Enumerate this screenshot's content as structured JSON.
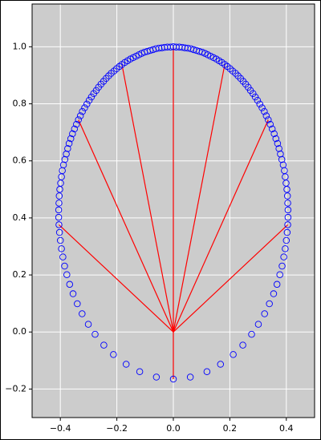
{
  "chart_data": {
    "type": "scatter",
    "xlim": [
      -0.5,
      0.5
    ],
    "ylim": [
      -0.3,
      1.15
    ],
    "xticks": [
      {
        "value": -0.4,
        "label": "−0.4"
      },
      {
        "value": -0.2,
        "label": "−0.2"
      },
      {
        "value": 0,
        "label": "0.0"
      },
      0.2,
      0.4
    ],
    "yticks": [
      {
        "value": -0.2,
        "label": "−0.2"
      },
      {
        "value": 0,
        "label": "0.0"
      },
      0.2,
      0.4,
      0.6,
      0.8,
      {
        "value": 1,
        "label": "1.0"
      }
    ],
    "grid": true,
    "background": "#cccccc",
    "series": [
      {
        "color": "#0000ff",
        "marker": "open-circle",
        "x": [
          0,
          0.06,
          0.119,
          0.167,
          0.212,
          0.246,
          0.277,
          0.301,
          0.323,
          0.34,
          0.355,
          0.367,
          0.377,
          0.385,
          0.391,
          0.396,
          0.4,
          0.403,
          0.405,
          0.406,
          0.406,
          0.405,
          0.404,
          0.402,
          0.399,
          0.396,
          0.393,
          0.389,
          0.384,
          0.379,
          0.374,
          0.369,
          0.363,
          0.357,
          0.35,
          0.343,
          0.336,
          0.329,
          0.322,
          0.314,
          0.306,
          0.298,
          0.29,
          0.282,
          0.273,
          0.265,
          0.256,
          0.247,
          0.238,
          0.229,
          0.22,
          0.21,
          0.201,
          0.191,
          0.182,
          0.172,
          0.162,
          0.152,
          0.142,
          0.132,
          0.122,
          0.112,
          0.102,
          0.092,
          0.082,
          0.072,
          0.062,
          0.051,
          0.041,
          0.031,
          0.021,
          0.01,
          0,
          -0.01,
          -0.021,
          -0.031,
          -0.041,
          -0.051,
          -0.062,
          -0.072,
          -0.082,
          -0.092,
          -0.102,
          -0.112,
          -0.122,
          -0.132,
          -0.142,
          -0.152,
          -0.162,
          -0.172,
          -0.182,
          -0.191,
          -0.201,
          -0.21,
          -0.22,
          -0.229,
          -0.238,
          -0.247,
          -0.256,
          -0.265,
          -0.273,
          -0.282,
          -0.29,
          -0.298,
          -0.306,
          -0.314,
          -0.322,
          -0.329,
          -0.336,
          -0.343,
          -0.35,
          -0.357,
          -0.363,
          -0.369,
          -0.374,
          -0.379,
          -0.384,
          -0.389,
          -0.393,
          -0.396,
          -0.399,
          -0.402,
          -0.404,
          -0.405,
          -0.406,
          -0.406,
          -0.405,
          -0.403,
          -0.4,
          -0.396,
          -0.391,
          -0.385,
          -0.377,
          -0.367,
          -0.355,
          -0.34,
          -0.323,
          -0.301,
          -0.277,
          -0.246,
          -0.212,
          -0.167,
          -0.119,
          -0.06
        ],
        "y": [
          -0.165,
          -0.158,
          -0.139,
          -0.113,
          -0.079,
          -0.046,
          -0.008,
          0.027,
          0.064,
          0.099,
          0.134,
          0.167,
          0.201,
          0.231,
          0.263,
          0.292,
          0.321,
          0.349,
          0.376,
          0.402,
          0.428,
          0.452,
          0.477,
          0.5,
          0.522,
          0.544,
          0.566,
          0.586,
          0.605,
          0.624,
          0.643,
          0.661,
          0.678,
          0.695,
          0.712,
          0.728,
          0.744,
          0.758,
          0.773,
          0.786,
          0.799,
          0.812,
          0.824,
          0.836,
          0.847,
          0.858,
          0.869,
          0.879,
          0.889,
          0.898,
          0.907,
          0.915,
          0.923,
          0.931,
          0.938,
          0.945,
          0.951,
          0.957,
          0.962,
          0.967,
          0.972,
          0.977,
          0.981,
          0.984,
          0.987,
          0.99,
          0.993,
          0.995,
          0.996,
          0.998,
          0.999,
          0.999,
          1.0,
          0.999,
          0.999,
          0.998,
          0.996,
          0.995,
          0.993,
          0.99,
          0.987,
          0.984,
          0.981,
          0.977,
          0.972,
          0.967,
          0.962,
          0.957,
          0.951,
          0.945,
          0.938,
          0.931,
          0.923,
          0.915,
          0.907,
          0.898,
          0.889,
          0.879,
          0.869,
          0.858,
          0.847,
          0.836,
          0.824,
          0.812,
          0.799,
          0.786,
          0.773,
          0.758,
          0.744,
          0.728,
          0.712,
          0.695,
          0.678,
          0.661,
          0.643,
          0.624,
          0.605,
          0.586,
          0.566,
          0.544,
          0.522,
          0.5,
          0.477,
          0.452,
          0.428,
          0.402,
          0.376,
          0.349,
          0.321,
          0.292,
          0.263,
          0.231,
          0.201,
          0.167,
          0.134,
          0.099,
          0.064,
          0.027,
          -0.008,
          -0.046,
          -0.079,
          -0.113,
          -0.139,
          -0.158
        ]
      }
    ],
    "segments": {
      "color": "#ff0000",
      "origin": [
        0,
        0
      ],
      "x": [
        0,
        0.405,
        0.336,
        0.182,
        0,
        -0.182,
        -0.336,
        -0.405
      ],
      "y": [
        -0.165,
        0.376,
        0.744,
        0.938,
        1.0,
        0.938,
        0.744,
        0.376
      ]
    }
  }
}
